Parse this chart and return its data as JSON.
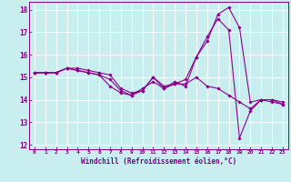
{
  "xlabel": "Windchill (Refroidissement éolien,°C)",
  "background_color": "#c8eef0",
  "line_color": "#8b008b",
  "grid_color": "#ffffff",
  "xlim": [
    -0.5,
    23.5
  ],
  "ylim": [
    11.8,
    18.35
  ],
  "yticks": [
    12,
    13,
    14,
    15,
    16,
    17,
    18
  ],
  "xticks": [
    0,
    1,
    2,
    3,
    4,
    5,
    6,
    7,
    8,
    9,
    10,
    11,
    12,
    13,
    14,
    15,
    16,
    17,
    18,
    19,
    20,
    21,
    22,
    23
  ],
  "series": [
    [
      15.2,
      15.2,
      15.2,
      15.4,
      15.4,
      15.3,
      15.2,
      15.1,
      14.5,
      14.3,
      14.4,
      15.0,
      14.6,
      14.7,
      14.9,
      15.9,
      16.6,
      17.8,
      18.1,
      17.2,
      13.9,
      14.0,
      14.0,
      13.9
    ],
    [
      15.2,
      15.2,
      15.2,
      15.4,
      15.3,
      15.2,
      15.1,
      14.9,
      14.4,
      14.2,
      14.5,
      14.8,
      14.5,
      14.7,
      14.7,
      15.0,
      14.6,
      14.5,
      14.2,
      13.9,
      13.6,
      14.0,
      13.9,
      13.8
    ],
    [
      15.2,
      15.2,
      15.2,
      15.4,
      15.3,
      15.2,
      15.1,
      14.6,
      14.3,
      14.2,
      14.4,
      15.0,
      14.5,
      14.8,
      14.6,
      15.9,
      16.8,
      17.6,
      17.1,
      12.3,
      13.5,
      14.0,
      14.0,
      13.8
    ]
  ],
  "tick_color": "#800080",
  "label_color": "#800080",
  "xlabel_fontsize": 5.5,
  "xtick_fontsize": 4.5,
  "ytick_fontsize": 5.5
}
